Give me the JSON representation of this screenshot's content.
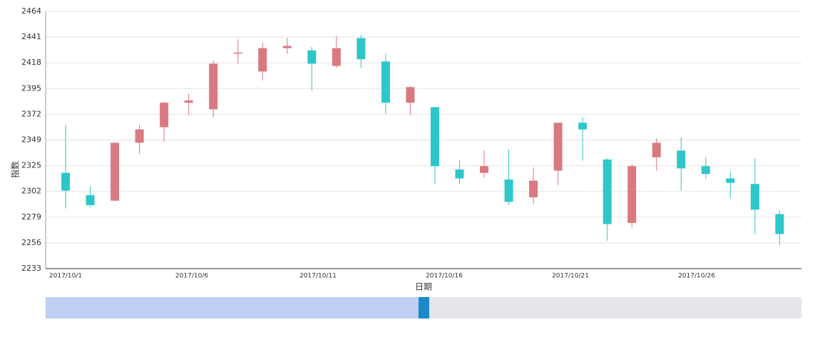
{
  "chart_data": {
    "type": "candlestick",
    "xlabel": "日期",
    "ylabel": "指数",
    "categories": [
      "2017/10/1",
      null,
      null,
      null,
      null,
      "2017/10/6",
      null,
      null,
      null,
      null,
      "2017/10/11",
      null,
      null,
      null,
      null,
      "2017/10/16",
      null,
      null,
      null,
      null,
      "2017/10/21",
      null,
      null,
      null,
      null,
      "2017/10/26",
      null,
      null,
      null,
      null
    ],
    "open": [
      2319,
      2299,
      2294,
      2346,
      2360,
      2382,
      2376,
      2426,
      2410,
      2431,
      2429,
      2415,
      2440,
      2419,
      2382,
      2378,
      2322,
      2319,
      2313,
      2297,
      2321,
      2364,
      2331,
      2274,
      2333,
      2339,
      2325,
      2314,
      2309,
      2282
    ],
    "close": [
      2303,
      2290,
      2346,
      2358,
      2382,
      2384,
      2417,
      2427,
      2431,
      2433,
      2417,
      2431,
      2421,
      2382,
      2396,
      2325,
      2314,
      2325,
      2293,
      2312,
      2364,
      2358,
      2273,
      2325,
      2346,
      2323,
      2318,
      2310,
      2286,
      2264
    ],
    "low": [
      2287,
      2288,
      2294,
      2336,
      2347,
      2371,
      2369,
      2417,
      2402,
      2426,
      2393,
      2413,
      2413,
      2372,
      2371,
      2309,
      2309,
      2315,
      2290,
      2291,
      2308,
      2330,
      2258,
      2270,
      2321,
      2303,
      2314,
      2296,
      2264,
      2254
    ],
    "high": [
      2362,
      2307,
      2346,
      2362,
      2383,
      2390,
      2420,
      2439,
      2436,
      2440,
      2432,
      2442,
      2443,
      2426,
      2397,
      2378,
      2330,
      2339,
      2340,
      2324,
      2364,
      2369,
      2332,
      2327,
      2350,
      2351,
      2333,
      2320,
      2332,
      2285
    ],
    "up_color": "#d87a80",
    "down_color": "#2ec7c9",
    "ylim": [
      2233,
      2464
    ],
    "yticks": [
      2233,
      {
        "value": 2256.1,
        "label": "2256"
      },
      {
        "value": 2279.2,
        "label": "2279"
      },
      {
        "value": 2302.3,
        "label": "2302"
      },
      {
        "value": 2325.4,
        "label": "2325"
      },
      {
        "value": 2348.5,
        "label": "2349"
      },
      {
        "value": 2371.6,
        "label": "2372"
      },
      {
        "value": 2394.7,
        "label": "2395"
      },
      {
        "value": 2417.8,
        "label": "2418"
      },
      {
        "value": 2440.9,
        "label": "2441"
      },
      2464
    ],
    "grid": true
  }
}
